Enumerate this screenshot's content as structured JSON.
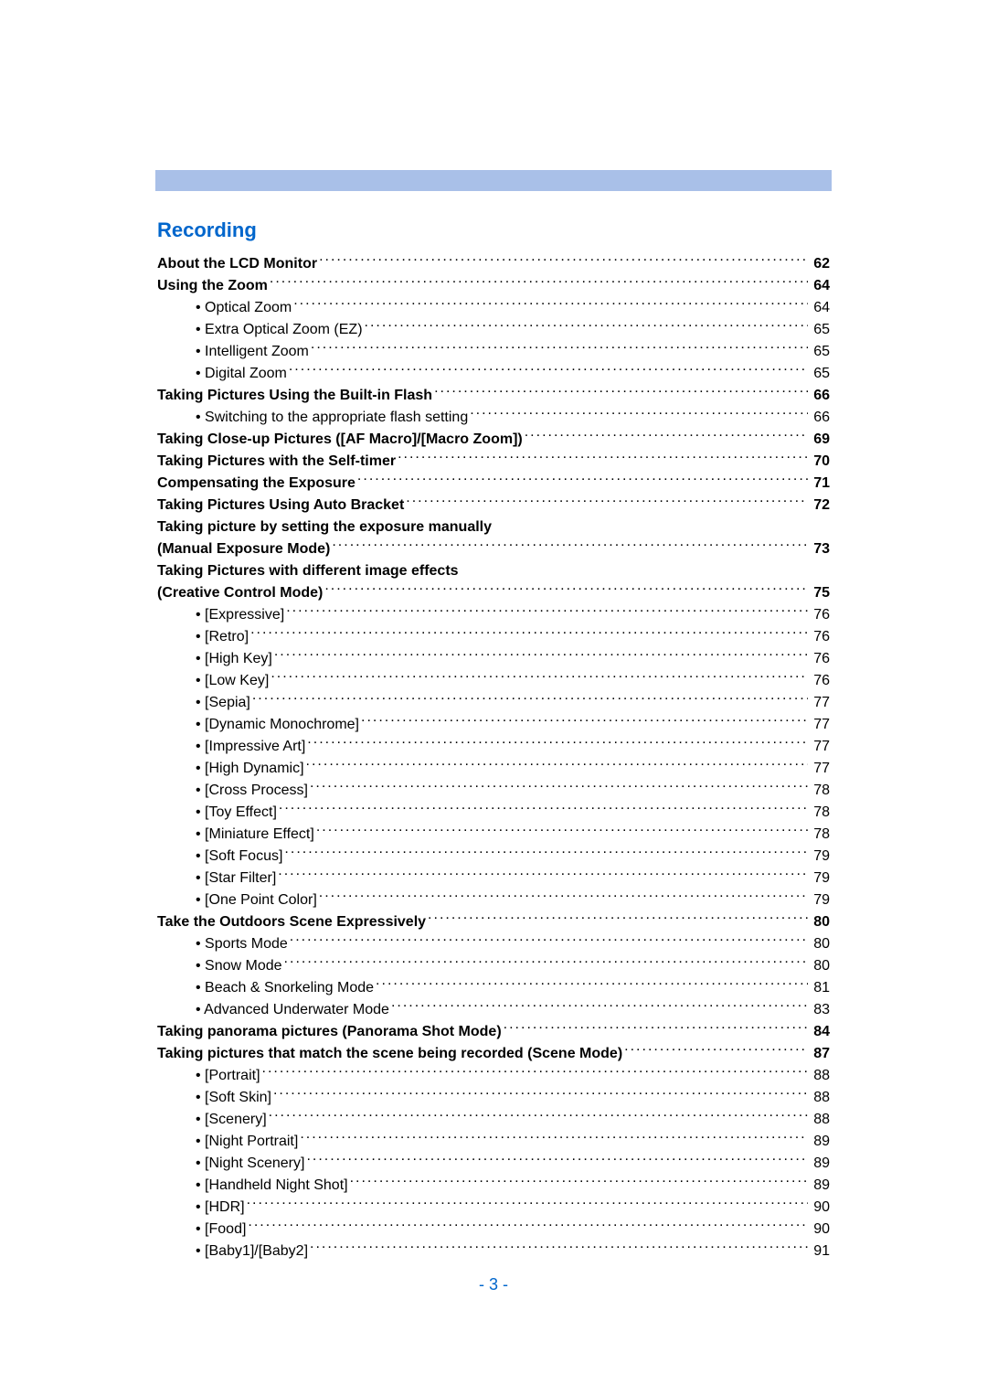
{
  "section_title": "Recording",
  "page_number": "- 3 -",
  "colors": {
    "header_bar": "#a9c0e8",
    "link": "#0066cc",
    "text": "#000000",
    "background": "#ffffff"
  },
  "toc": [
    {
      "label": "About the LCD Monitor",
      "page": "62",
      "bold": true,
      "indent": 0
    },
    {
      "label": "Using the Zoom",
      "page": "64",
      "bold": true,
      "indent": 0
    },
    {
      "label": "• Optical Zoom",
      "page": "64",
      "bold": false,
      "indent": 1
    },
    {
      "label": "• Extra Optical Zoom (EZ)",
      "page": "65",
      "bold": false,
      "indent": 1
    },
    {
      "label": "• Intelligent Zoom",
      "page": "65",
      "bold": false,
      "indent": 1
    },
    {
      "label": "• Digital Zoom",
      "page": "65",
      "bold": false,
      "indent": 1
    },
    {
      "label": "Taking Pictures Using the Built-in Flash",
      "page": "66",
      "bold": true,
      "indent": 0
    },
    {
      "label": "• Switching to the appropriate flash setting",
      "page": "66",
      "bold": false,
      "indent": 1
    },
    {
      "label": "Taking Close-up Pictures ([AF Macro]/[Macro Zoom])",
      "page": "69",
      "bold": true,
      "indent": 0
    },
    {
      "label": "Taking Pictures with the Self-timer",
      "page": "70",
      "bold": true,
      "indent": 0
    },
    {
      "label": "Compensating the Exposure",
      "page": "71",
      "bold": true,
      "indent": 0
    },
    {
      "label": "Taking Pictures Using Auto Bracket",
      "page": "72",
      "bold": true,
      "indent": 0
    },
    {
      "label_line1": "Taking picture by setting the exposure manually",
      "label": "(Manual Exposure Mode)",
      "page": "73",
      "bold": true,
      "indent": 0,
      "wrap": true
    },
    {
      "label_line1": "Taking Pictures with different image effects",
      "label": "(Creative Control Mode)",
      "page": "75",
      "bold": true,
      "indent": 0,
      "wrap": true
    },
    {
      "label": "• [Expressive]",
      "page": "76",
      "bold": false,
      "indent": 1
    },
    {
      "label": "• [Retro]",
      "page": "76",
      "bold": false,
      "indent": 1
    },
    {
      "label": "• [High Key]",
      "page": "76",
      "bold": false,
      "indent": 1
    },
    {
      "label": "• [Low Key]",
      "page": "76",
      "bold": false,
      "indent": 1
    },
    {
      "label": "• [Sepia]",
      "page": "77",
      "bold": false,
      "indent": 1
    },
    {
      "label": "• [Dynamic Monochrome]",
      "page": "77",
      "bold": false,
      "indent": 1
    },
    {
      "label": "• [Impressive Art]",
      "page": "77",
      "bold": false,
      "indent": 1
    },
    {
      "label": "• [High Dynamic]",
      "page": "77",
      "bold": false,
      "indent": 1
    },
    {
      "label": "• [Cross Process]",
      "page": "78",
      "bold": false,
      "indent": 1
    },
    {
      "label": "• [Toy Effect]",
      "page": "78",
      "bold": false,
      "indent": 1
    },
    {
      "label": "• [Miniature Effect]",
      "page": "78",
      "bold": false,
      "indent": 1
    },
    {
      "label": "• [Soft Focus]",
      "page": "79",
      "bold": false,
      "indent": 1
    },
    {
      "label": "• [Star Filter]",
      "page": "79",
      "bold": false,
      "indent": 1
    },
    {
      "label": "• [One Point Color]",
      "page": "79",
      "bold": false,
      "indent": 1
    },
    {
      "label": "Take the Outdoors Scene Expressively",
      "page": "80",
      "bold": true,
      "indent": 0
    },
    {
      "label": "• Sports Mode",
      "page": "80",
      "bold": false,
      "indent": 1
    },
    {
      "label": "• Snow Mode",
      "page": "80",
      "bold": false,
      "indent": 1
    },
    {
      "label": "• Beach & Snorkeling Mode",
      "page": "81",
      "bold": false,
      "indent": 1
    },
    {
      "label": "• Advanced Underwater Mode",
      "page": "83",
      "bold": false,
      "indent": 1
    },
    {
      "label": "Taking panorama pictures (Panorama Shot Mode)",
      "page": "84",
      "bold": true,
      "indent": 0
    },
    {
      "label": "Taking pictures that match the scene being recorded (Scene Mode)",
      "page": "87",
      "bold": true,
      "indent": 0
    },
    {
      "label": "• [Portrait]",
      "page": "88",
      "bold": false,
      "indent": 1
    },
    {
      "label": "• [Soft Skin]",
      "page": "88",
      "bold": false,
      "indent": 1
    },
    {
      "label": "• [Scenery]",
      "page": "88",
      "bold": false,
      "indent": 1
    },
    {
      "label": "• [Night Portrait]",
      "page": "89",
      "bold": false,
      "indent": 1
    },
    {
      "label": "• [Night Scenery]",
      "page": "89",
      "bold": false,
      "indent": 1
    },
    {
      "label": "• [Handheld Night Shot]",
      "page": "89",
      "bold": false,
      "indent": 1
    },
    {
      "label": "• [HDR]",
      "page": "90",
      "bold": false,
      "indent": 1
    },
    {
      "label": "• [Food]",
      "page": "90",
      "bold": false,
      "indent": 1
    },
    {
      "label": "• [Baby1]/[Baby2]",
      "page": "91",
      "bold": false,
      "indent": 1
    }
  ]
}
